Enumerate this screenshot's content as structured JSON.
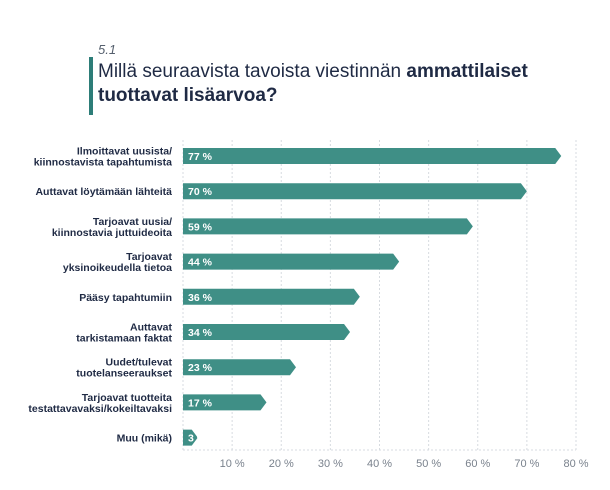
{
  "section_number": "5.1",
  "title_regular": "Millä seuraavista tavoista viestinnän ",
  "title_bold": "ammattilaiset tuottavat lisäarvoa?",
  "colors": {
    "bar": "#3f8f86",
    "accent": "#2d7d78",
    "text": "#1f2a44",
    "grid": "#d7dbe0"
  },
  "chart_data": {
    "type": "bar",
    "orientation": "horizontal",
    "categories": [
      [
        "Ilmoittavat uusista/",
        "kiinnostavista tapahtumista"
      ],
      [
        "Auttavat löytämään lähteitä"
      ],
      [
        "Tarjoavat uusia/",
        "kiinnostavia juttuideoita"
      ],
      [
        "Tarjoavat",
        "yksinoikeudella tietoa"
      ],
      [
        "Pääsy tapahtumiin"
      ],
      [
        "Auttavat",
        "tarkistamaan faktat"
      ],
      [
        "Uudet/tulevat",
        "tuotelanseeraukset"
      ],
      [
        "Tarjoavat tuotteita",
        "testattavavaksi/kokeiltavaksi"
      ],
      [
        "Muu (mikä)"
      ]
    ],
    "values": [
      77,
      70,
      59,
      44,
      36,
      34,
      23,
      17,
      3
    ],
    "value_labels": [
      "77 %",
      "70 %",
      "59 %",
      "44 %",
      "36 %",
      "34 %",
      "23 %",
      "17 %",
      "3 %"
    ],
    "xticks": [
      10,
      20,
      30,
      40,
      50,
      60,
      70,
      80
    ],
    "xtick_labels": [
      "10 %",
      "20 %",
      "30 %",
      "40 %",
      "50 %",
      "60 %",
      "70 %",
      "80 %"
    ],
    "xlim": [
      0,
      80
    ],
    "grid": true,
    "xlabel": "",
    "ylabel": ""
  }
}
